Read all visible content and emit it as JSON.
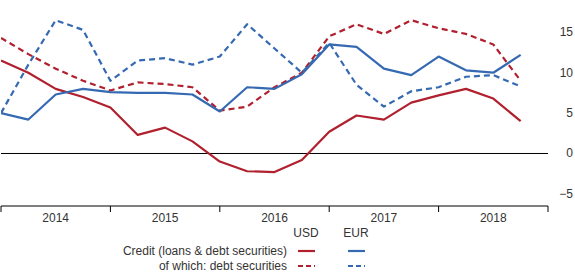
{
  "chart_data": {
    "type": "line",
    "x": [
      2014,
      2014.25,
      2014.5,
      2014.75,
      2015,
      2015.25,
      2015.5,
      2015.75,
      2016,
      2016.25,
      2016.5,
      2016.75,
      2017,
      2017.25,
      2017.5,
      2017.75,
      2018,
      2018.25,
      2018.5,
      2018.75
    ],
    "xlim": [
      2014,
      2019
    ],
    "xticks": [
      {
        "value": 2014.5,
        "label": "2014"
      },
      {
        "value": 2015.5,
        "label": "2015"
      },
      {
        "value": 2016.5,
        "label": "2016"
      },
      {
        "value": 2017.5,
        "label": "2017"
      },
      {
        "value": 2018.5,
        "label": "2018"
      }
    ],
    "ylim": [
      -6.5,
      19
    ],
    "yticks": [
      15,
      10,
      5,
      0,
      {
        "value": -5,
        "label": "−5"
      }
    ],
    "grid": false,
    "legend": "bottom",
    "series": [
      {
        "name": "Credit (loans & debt securities)",
        "group": "USD",
        "color": "#b0202e",
        "line_style": "solid",
        "values": [
          11.5,
          10,
          8,
          7,
          5.7,
          2.3,
          3.2,
          1.5,
          -1,
          -2.2,
          -2.3,
          -0.8,
          2.7,
          4.7,
          4.2,
          6.3,
          7.2,
          8,
          6.8,
          4
        ]
      },
      {
        "name": "of which: debt securities",
        "group": "USD",
        "color": "#b0202e",
        "line_style": "dashed",
        "values": [
          14.3,
          12.3,
          10.5,
          9,
          7.8,
          8.8,
          8.6,
          8.2,
          5.3,
          5.8,
          8.2,
          10,
          14.5,
          16,
          14.8,
          16.5,
          15.5,
          14.8,
          13.5,
          9
        ]
      },
      {
        "name": "Credit (loans & debt securities)",
        "group": "EUR",
        "color": "#3569b2",
        "line_style": "solid",
        "values": [
          5,
          4.2,
          7.3,
          8,
          7.6,
          7.5,
          7.5,
          7.3,
          5.2,
          8.2,
          8,
          9.8,
          13.5,
          13.2,
          10.5,
          9.7,
          12,
          10.3,
          10,
          12.2
        ]
      },
      {
        "name": "of which: debt securities",
        "group": "EUR",
        "color": "#3569b2",
        "line_style": "dashed",
        "values": [
          5,
          11,
          16.5,
          15.3,
          9,
          11.5,
          11.8,
          11,
          12,
          16,
          13,
          10,
          13.7,
          8.5,
          5.8,
          7.7,
          8.2,
          9.5,
          9.7,
          8.3
        ]
      }
    ]
  }
}
